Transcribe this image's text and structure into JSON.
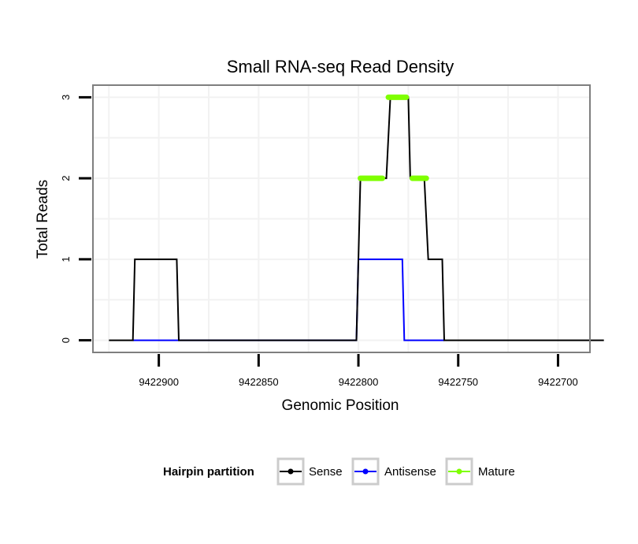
{
  "chart_data": {
    "type": "line",
    "title": "Small RNA-seq Read Density",
    "xlabel": "Genomic Position",
    "ylabel": "Total Reads",
    "xlim": [
      9422933,
      9422684
    ],
    "ylim": [
      -0.15,
      3.15
    ],
    "x_reversed": true,
    "grid": true,
    "x_ticks": [
      9422900,
      9422850,
      9422800,
      9422750,
      9422700
    ],
    "x_tick_labels": [
      "9422900",
      "9422850",
      "9422800",
      "9422750",
      "9422700"
    ],
    "y_ticks": [
      0,
      1,
      2,
      3
    ],
    "y_tick_labels": [
      "0",
      "1",
      "2",
      "3"
    ],
    "legend": {
      "title": "Hairpin partition",
      "position": "bottom",
      "entries": [
        {
          "label": "Sense",
          "color": "#000000"
        },
        {
          "label": "Antisense",
          "color": "#0000ff"
        },
        {
          "label": "Mature",
          "color": "#7fff00"
        }
      ]
    },
    "series": [
      {
        "name": "Sense",
        "color": "#000000",
        "points": [
          [
            9422925,
            0
          ],
          [
            9422913,
            0
          ],
          [
            9422912,
            1
          ],
          [
            9422891,
            1
          ],
          [
            9422890,
            0
          ],
          [
            9422801,
            0
          ],
          [
            9422799,
            2
          ],
          [
            9422786,
            2
          ],
          [
            9422784,
            3
          ],
          [
            9422775,
            3
          ],
          [
            9422774,
            2
          ],
          [
            9422767,
            2
          ],
          [
            9422765,
            1
          ],
          [
            9422758,
            1
          ],
          [
            9422757,
            0
          ],
          [
            9422677,
            0
          ]
        ]
      },
      {
        "name": "Antisense",
        "color": "#0000ff",
        "points": [
          [
            9422913,
            0
          ],
          [
            9422891,
            0
          ],
          [
            9422890,
            0
          ],
          [
            9422801,
            0
          ],
          [
            9422800,
            1
          ],
          [
            9422778,
            1
          ],
          [
            9422777,
            0
          ],
          [
            9422757,
            0
          ]
        ]
      },
      {
        "name": "Mature",
        "color": "#7fff00",
        "segments": [
          [
            [
              9422799,
              2
            ],
            [
              9422788,
              2
            ]
          ],
          [
            [
              9422785,
              3
            ],
            [
              9422776,
              3
            ]
          ],
          [
            [
              9422773,
              2
            ],
            [
              9422766,
              2
            ]
          ]
        ]
      }
    ]
  }
}
